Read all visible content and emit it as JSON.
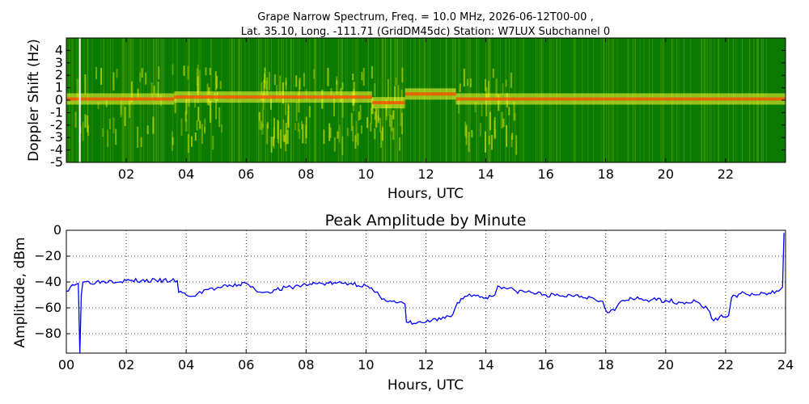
{
  "figure_title_line1": "Grape Narrow Spectrum, Freq. = 10.0 MHz, 2026-06-12T00-00 ,",
  "figure_title_line2": "Lat.  35.10, Long. -111.71 (GridDM45dc) Station: W7LUX Subchannel 0",
  "colors": {
    "spectrogram_bg": "#0a7a00",
    "spectrogram_noise": "#5aa800",
    "carrier_yellow": "#ffff33",
    "carrier_red": "#ff4400",
    "amplitude_line": "#0000ff"
  },
  "chart_data": [
    {
      "type": "heatmap",
      "title": "",
      "xlabel": "Hours, UTC",
      "ylabel": "Doppler Shift (Hz)",
      "xlim": [
        0,
        24
      ],
      "ylim": [
        -5,
        5
      ],
      "x_tick_labels": [
        "02",
        "04",
        "06",
        "08",
        "10",
        "12",
        "14",
        "16",
        "18",
        "20",
        "22"
      ],
      "y_tick_labels": [
        "4",
        "3",
        "2",
        "1",
        "0",
        "-1",
        "-2",
        "-3",
        "-4",
        "-5"
      ],
      "carrier_segments": [
        {
          "from": 0.0,
          "to": 3.6,
          "doppler": 0.1
        },
        {
          "from": 3.6,
          "to": 10.2,
          "doppler": 0.25
        },
        {
          "from": 10.2,
          "to": 11.3,
          "doppler": -0.2
        },
        {
          "from": 11.3,
          "to": 13.0,
          "doppler": 0.5
        },
        {
          "from": 13.0,
          "to": 24.0,
          "doppler": 0.1
        }
      ],
      "white_marker_hour": 0.45
    },
    {
      "type": "line",
      "title": "Peak Amplitude by Minute",
      "xlabel": "Hours, UTC",
      "ylabel": "Amplitude, dBm",
      "xlim": [
        0,
        24
      ],
      "ylim": [
        -95,
        0
      ],
      "x_tick_labels": [
        "00",
        "02",
        "04",
        "06",
        "08",
        "10",
        "12",
        "14",
        "16",
        "18",
        "20",
        "22",
        "24"
      ],
      "y_tick_labels": [
        "0",
        "−20",
        "−40",
        "−60",
        "−80"
      ],
      "y_ticks": [
        0,
        -20,
        -40,
        -60,
        -80
      ],
      "grid": true,
      "series": [
        {
          "x": [
            0.0,
            0.2,
            0.4,
            0.45,
            0.5,
            0.55,
            0.6,
            1.0,
            1.5,
            2.0,
            2.5,
            3.0,
            3.5,
            3.7,
            3.75,
            4.0,
            4.3,
            4.6,
            5.0,
            5.5,
            6.0,
            6.3,
            6.6,
            7.0,
            7.5,
            8.0,
            8.5,
            9.0,
            9.5,
            10.0,
            10.3,
            10.6,
            11.0,
            11.3,
            11.35,
            11.6,
            12.0,
            12.5,
            12.9,
            13.05,
            13.3,
            13.6,
            14.0,
            14.3,
            14.4,
            14.6,
            15.0,
            15.5,
            16.0,
            16.5,
            17.0,
            17.5,
            17.9,
            18.0,
            18.3,
            18.5,
            18.7,
            19.0,
            19.5,
            20.0,
            20.5,
            21.0,
            21.4,
            21.6,
            21.8,
            22.1,
            22.2,
            22.5,
            23.0,
            23.5,
            23.9,
            23.95
          ],
          "y": [
            -47,
            -42,
            -41,
            -95,
            -50,
            -40,
            -40,
            -40,
            -39,
            -39,
            -39,
            -39,
            -39,
            -39,
            -48,
            -50,
            -51,
            -46,
            -45,
            -43,
            -41,
            -46,
            -48,
            -46,
            -44,
            -42,
            -41,
            -41,
            -41,
            -43,
            -48,
            -53,
            -56,
            -57,
            -71,
            -72,
            -71,
            -69,
            -65,
            -56,
            -51,
            -50,
            -52,
            -50,
            -43,
            -44,
            -47,
            -48,
            -50,
            -51,
            -50,
            -52,
            -55,
            -62,
            -62,
            -55,
            -54,
            -53,
            -54,
            -54,
            -56,
            -55,
            -61,
            -70,
            -67,
            -66,
            -52,
            -49,
            -50,
            -49,
            -44,
            -2
          ]
        }
      ]
    }
  ]
}
